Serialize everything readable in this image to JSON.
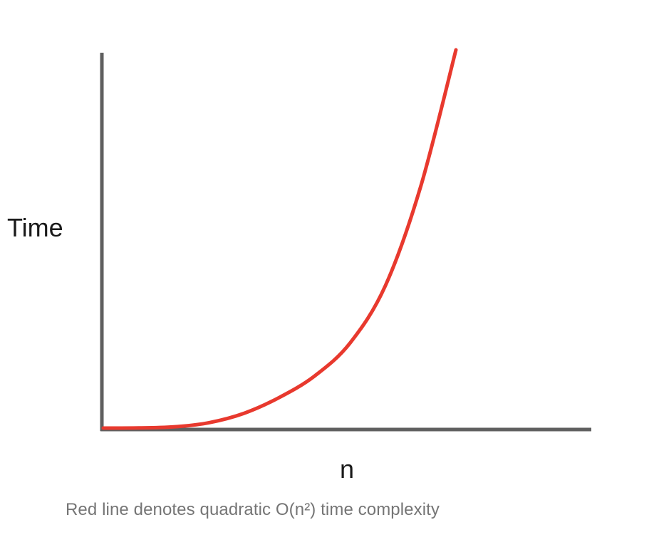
{
  "chart_data": {
    "type": "line",
    "title": "",
    "xlabel": "n",
    "ylabel": "Time",
    "grid": false,
    "series": [
      {
        "color": "#e8392e",
        "x": [
          0,
          0.1,
          0.2,
          0.3,
          0.4,
          0.5,
          0.6,
          0.7,
          0.8,
          0.9,
          1.0
        ],
        "y": [
          0,
          0.0003,
          0.0032,
          0.0143,
          0.0394,
          0.0813,
          0.1383,
          0.2253,
          0.3767,
          0.6386,
          1.0
        ]
      }
    ],
    "axis_color": "#5f5f5f"
  },
  "caption": "Red line denotes quadratic O(n²) time complexity"
}
